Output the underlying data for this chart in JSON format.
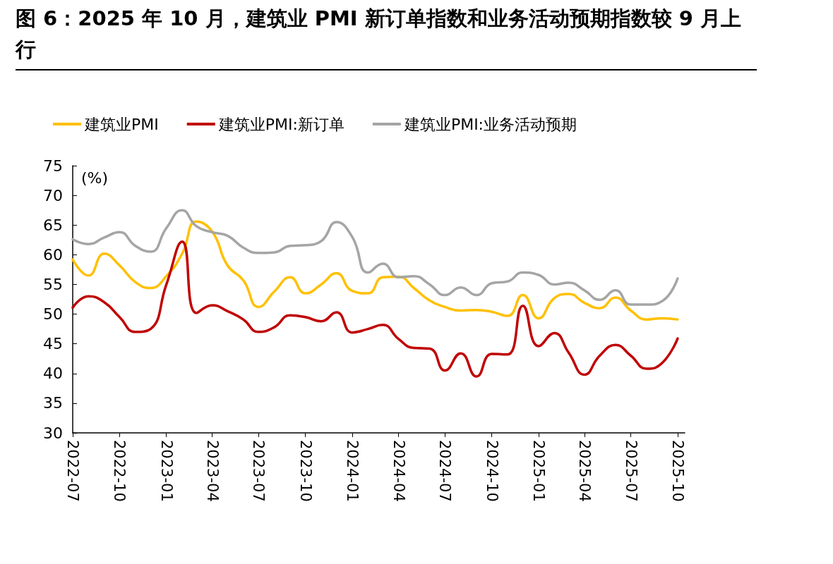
{
  "chart_data": {
    "type": "line",
    "title": "图 6：2025 年 10 月，建筑业 PMI 新订单指数和业务活动预期指数较 9 月上行",
    "ylabel": "(%)",
    "x": [
      "2022-07",
      "2022-08",
      "2022-09",
      "2022-10",
      "2022-11",
      "2022-12",
      "2023-01",
      "2023-02",
      "2023-03",
      "2023-04",
      "2023-05",
      "2023-06",
      "2023-07",
      "2023-08",
      "2023-09",
      "2023-10",
      "2023-11",
      "2023-12",
      "2024-01",
      "2024-02",
      "2024-03",
      "2024-04",
      "2024-05",
      "2024-06",
      "2024-07",
      "2024-08",
      "2024-09",
      "2024-10",
      "2024-11",
      "2024-12",
      "2025-01",
      "2025-02",
      "2025-03",
      "2025-04",
      "2025-05",
      "2025-06",
      "2025-07",
      "2025-08",
      "2025-09",
      "2025-10"
    ],
    "series": [
      {
        "name": "建筑业PMI",
        "color": "#ffc000",
        "values": [
          59.2,
          56.5,
          60.2,
          58.2,
          55.4,
          54.4,
          56.4,
          60.2,
          65.6,
          63.9,
          58.2,
          55.7,
          51.2,
          53.8,
          56.2,
          53.5,
          55.0,
          56.9,
          53.9,
          53.5,
          56.2,
          56.3,
          54.4,
          52.3,
          51.2,
          50.6,
          50.7,
          50.4,
          49.7,
          53.2,
          49.3,
          52.7,
          53.4,
          51.9,
          51.0,
          52.8,
          50.6,
          49.1,
          49.3,
          49.1
        ]
      },
      {
        "name": "建筑业PMI:新订单",
        "color": "#c00000",
        "values": [
          51.1,
          53.0,
          52.0,
          49.5,
          47.0,
          47.5,
          55.0,
          62.2,
          50.2,
          51.5,
          50.5,
          49.1,
          47.0,
          47.8,
          49.8,
          49.5,
          48.8,
          50.3,
          46.9,
          47.5,
          48.2,
          45.8,
          44.3,
          44.2,
          40.5,
          43.4,
          39.5,
          43.3,
          43.2,
          51.4,
          44.6,
          46.8,
          43.5,
          39.8,
          43.0,
          44.8,
          43.0,
          40.8,
          41.8,
          45.9
        ]
      },
      {
        "name": "建筑业PMI:业务活动预期",
        "color": "#a5a5a5",
        "values": [
          62.6,
          61.8,
          62.9,
          63.8,
          61.5,
          60.5,
          64.5,
          67.5,
          64.8,
          63.8,
          63.2,
          61.2,
          60.3,
          60.4,
          61.5,
          61.6,
          62.3,
          65.5,
          63.0,
          57.0,
          58.5,
          56.2,
          56.4,
          55.0,
          53.2,
          54.5,
          53.2,
          55.2,
          55.5,
          57.0,
          56.6,
          55.0,
          55.3,
          54.0,
          52.4,
          54.0,
          51.6,
          51.6,
          52.2,
          56.0
        ]
      }
    ],
    "xlim": [
      "2022-07-01",
      "2025-10-15"
    ],
    "xticks": [
      "2022-07",
      "2022-10",
      "2023-01",
      "2023-04",
      "2023-07",
      "2023-10",
      "2024-01",
      "2024-04",
      "2024-07",
      "2024-10",
      "2025-01",
      "2025-04",
      "2025-07",
      "2025-10"
    ],
    "ylim": [
      30,
      75
    ],
    "yticks": [
      30,
      35,
      40,
      45,
      50,
      55,
      60,
      65,
      70,
      75
    ],
    "grid": false,
    "legend": "top",
    "marker": "none",
    "line_style": "solid"
  }
}
